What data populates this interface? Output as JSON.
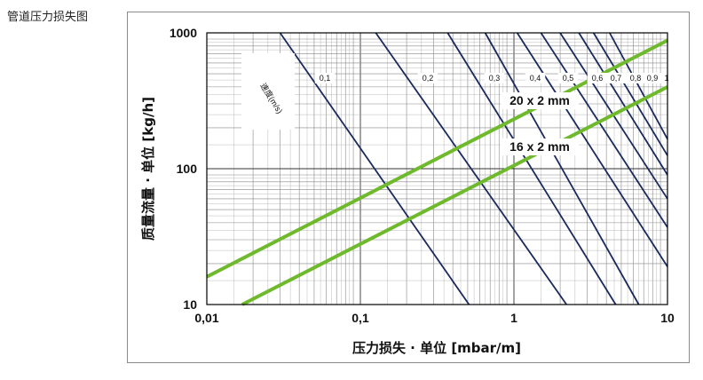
{
  "page": {
    "title": "管道压力损失图"
  },
  "chart_data": {
    "type": "line",
    "xscale": "log",
    "yscale": "log",
    "xlim": [
      0.01,
      10
    ],
    "ylim": [
      10,
      1000
    ],
    "xlabel": "压力损失 · 单位 [mbar/m]",
    "ylabel": "质量流量 · 单位 [kg/h]",
    "x_ticks": [
      "0,01",
      "0,1",
      "1",
      "10"
    ],
    "y_ticks": [
      "10",
      "100",
      "1000"
    ],
    "grid": true,
    "velocity_label": "速度(m/s)",
    "velocity_lines": [
      {
        "label": "0,1",
        "points": [
          [
            0.03,
            1000
          ],
          [
            0.51,
            10
          ]
        ]
      },
      {
        "label": "0,2",
        "points": [
          [
            0.126,
            1000
          ],
          [
            2.2,
            10
          ]
        ]
      },
      {
        "label": "0,3",
        "points": [
          [
            0.37,
            1000
          ],
          [
            4.6,
            10
          ]
        ]
      },
      {
        "label": "0,4",
        "points": [
          [
            0.65,
            1000
          ],
          [
            6.5,
            10
          ]
        ]
      },
      {
        "label": "0,5",
        "points": [
          [
            1.05,
            1000
          ],
          [
            10,
            19
          ]
        ]
      },
      {
        "label": "0,6",
        "points": [
          [
            1.5,
            1000
          ],
          [
            10,
            37
          ]
        ]
      },
      {
        "label": "0,7",
        "points": [
          [
            2.0,
            1000
          ],
          [
            10,
            60
          ]
        ]
      },
      {
        "label": "0,8",
        "points": [
          [
            2.65,
            1000
          ],
          [
            10,
            90
          ]
        ]
      },
      {
        "label": "0,9",
        "points": [
          [
            3.3,
            1000
          ],
          [
            10,
            125
          ]
        ]
      },
      {
        "label": "1",
        "points": [
          [
            4.2,
            1000
          ],
          [
            10,
            165
          ]
        ]
      }
    ],
    "series": [
      {
        "name": "20 x 2 mm",
        "color": "#6fba2c",
        "points": [
          [
            0.01,
            16
          ],
          [
            10,
            880
          ]
        ]
      },
      {
        "name": "16 x 2 mm",
        "color": "#6fba2c",
        "points": [
          [
            0.017,
            10
          ],
          [
            10,
            400
          ]
        ]
      }
    ]
  }
}
